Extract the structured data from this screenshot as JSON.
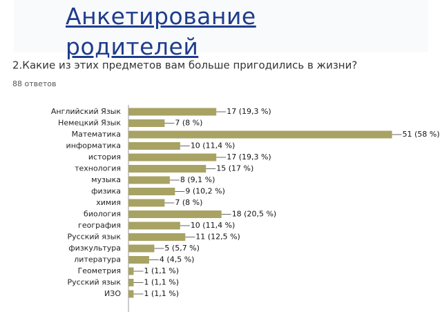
{
  "header": {
    "title": "Анкетирование родителей"
  },
  "question": "2.Какие из этих предметов вам больше пригодились в жизни?",
  "responses": "88 ответов",
  "chart_data": {
    "type": "bar",
    "orientation": "horizontal",
    "color": "#a8a263",
    "categories": [
      "Английский Язык",
      "Немецкий Язык",
      "Математика",
      "информатика",
      "история",
      "технология",
      "музыка",
      "физика",
      "химия",
      "биология",
      "география",
      "Русский язык",
      "физкультура",
      "литература",
      "Геометрия",
      "Русский язык",
      "ИЗО"
    ],
    "values": [
      17,
      7,
      51,
      10,
      17,
      15,
      8,
      9,
      7,
      18,
      10,
      11,
      5,
      4,
      1,
      1,
      1
    ],
    "value_labels": [
      "17 (19,3 %)",
      "7 (8 %)",
      "51 (58 %)",
      "10 (11,4 %)",
      "17 (19,3 %)",
      "15 (17 %)",
      "8 (9,1 %)",
      "9 (10,2 %)",
      "7 (8 %)",
      "18 (20,5 %)",
      "10 (11,4 %)",
      "11 (12,5 %)",
      "5 (5,7 %)",
      "4 (4,5 %)",
      "1 (1,1 %)",
      "1 (1,1 %)",
      "1 (1,1 %)"
    ],
    "xlim": [
      0,
      58
    ]
  }
}
